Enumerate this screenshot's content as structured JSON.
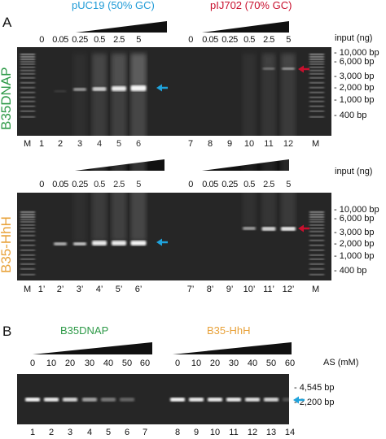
{
  "panel_a": {
    "letter": "A",
    "group_titles": [
      {
        "text": "pUC19 (50% GC)",
        "color": "#1f9bd7"
      },
      {
        "text": "pIJ702 (70% GC)",
        "color": "#c8102e"
      }
    ],
    "input_label": "input (ng)",
    "input_values": [
      "0",
      "0.05",
      "0.25",
      "0.5",
      "2.5",
      "5"
    ],
    "ladder_markers": [
      "- 10,000 bp",
      "- 6,000 bp",
      "- 3,000 bp",
      "- 2,000 bp",
      "- 1,000 bp",
      "- 400 bp"
    ],
    "top_gel": {
      "row_label": "B35DNAP",
      "row_label_color": "#2e9a48",
      "marker_label": "M",
      "lanes": [
        "1",
        "2",
        "3",
        "4",
        "5",
        "6",
        "7",
        "8",
        "9",
        "10",
        "11",
        "12"
      ]
    },
    "bottom_gel": {
      "row_label": "B35-HhH",
      "row_label_color": "#e8a23a",
      "marker_label": "M",
      "lanes": [
        "1’",
        "2’",
        "3’",
        "4’",
        "5’",
        "6’",
        "7’",
        "8’",
        "9’",
        "10’",
        "11’",
        "12’"
      ]
    }
  },
  "panel_b": {
    "letter": "B",
    "group_titles": [
      {
        "text": "B35DNAP",
        "color": "#2e9a48"
      },
      {
        "text": "B35-HhH",
        "color": "#e8a23a"
      }
    ],
    "as_label": "AS (mM)",
    "as_values": [
      "0",
      "10",
      "20",
      "30",
      "40",
      "50",
      "60",
      "0",
      "10",
      "20",
      "30",
      "40",
      "50",
      "60"
    ],
    "markers": [
      "- 4,545 bp",
      "- 2,200 bp"
    ],
    "lanes": [
      "1",
      "2",
      "3",
      "4",
      "5",
      "6",
      "7",
      "8",
      "9",
      "10",
      "11",
      "12",
      "13",
      "14"
    ]
  },
  "colors": {
    "arrow_blue": "#1fa3dc",
    "arrow_red": "#c8102e",
    "gel": "#262626"
  }
}
